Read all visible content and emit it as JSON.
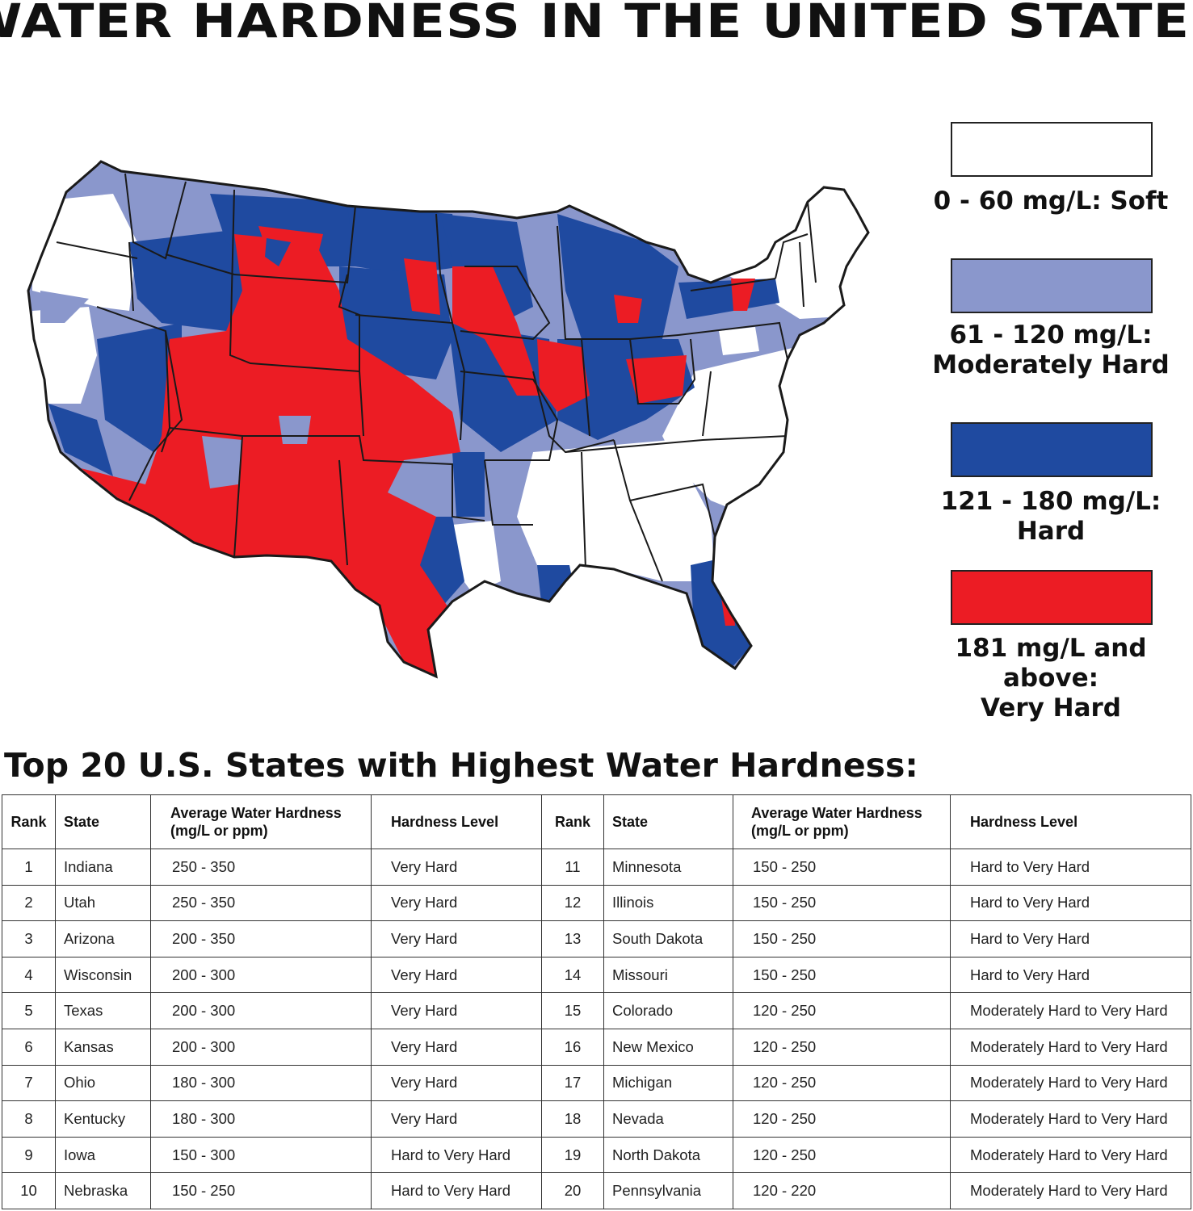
{
  "title": "WATER HARDNESS IN THE UNITED STATES",
  "legend": [
    {
      "label_lines": [
        "0 - 60 mg/L: Soft"
      ],
      "color": "#ffffff"
    },
    {
      "label_lines": [
        "61 - 120 mg/L:",
        "Moderately Hard"
      ],
      "color": "#8a97cc"
    },
    {
      "label_lines": [
        "121 - 180 mg/L: Hard"
      ],
      "color": "#1f4aa0"
    },
    {
      "label_lines": [
        "181 mg/L and above:",
        "Very Hard"
      ],
      "color": "#ec1c24"
    }
  ],
  "table": {
    "title": "Top 20 U.S. States with Highest Water Hardness:",
    "headers": {
      "rank": "Rank",
      "state": "State",
      "avg_line1": "Average Water Hardness",
      "avg_line2": "(mg/L or ppm)",
      "level": "Hardness Level"
    },
    "left_rows": [
      {
        "rank": "1",
        "state": "Indiana",
        "range": "250 - 350",
        "level": "Very Hard"
      },
      {
        "rank": "2",
        "state": "Utah",
        "range": "250 - 350",
        "level": "Very Hard"
      },
      {
        "rank": "3",
        "state": "Arizona",
        "range": "200 - 350",
        "level": "Very Hard"
      },
      {
        "rank": "4",
        "state": "Wisconsin",
        "range": "200 - 300",
        "level": "Very Hard"
      },
      {
        "rank": "5",
        "state": "Texas",
        "range": "200 - 300",
        "level": "Very Hard"
      },
      {
        "rank": "6",
        "state": "Kansas",
        "range": "200 - 300",
        "level": "Very Hard"
      },
      {
        "rank": "7",
        "state": "Ohio",
        "range": "180 - 300",
        "level": "Very Hard"
      },
      {
        "rank": "8",
        "state": "Kentucky",
        "range": "180 - 300",
        "level": "Very Hard"
      },
      {
        "rank": "9",
        "state": "Iowa",
        "range": "150 - 300",
        "level": "Hard to Very Hard"
      },
      {
        "rank": "10",
        "state": "Nebraska",
        "range": "150 - 250",
        "level": "Hard to Very Hard"
      }
    ],
    "right_rows": [
      {
        "rank": "11",
        "state": "Minnesota",
        "range": "150 - 250",
        "level": "Hard to Very Hard"
      },
      {
        "rank": "12",
        "state": "Illinois",
        "range": "150 - 250",
        "level": "Hard to Very Hard"
      },
      {
        "rank": "13",
        "state": "South Dakota",
        "range": "150 - 250",
        "level": "Hard to Very Hard"
      },
      {
        "rank": "14",
        "state": "Missouri",
        "range": "150 - 250",
        "level": "Hard to Very Hard"
      },
      {
        "rank": "15",
        "state": "Colorado",
        "range": "120 - 250",
        "level": "Moderately Hard to Very Hard"
      },
      {
        "rank": "16",
        "state": "New Mexico",
        "range": "120 - 250",
        "level": "Moderately Hard to Very Hard"
      },
      {
        "rank": "17",
        "state": "Michigan",
        "range": "120 - 250",
        "level": "Moderately Hard to Very Hard"
      },
      {
        "rank": "18",
        "state": "Nevada",
        "range": "120 - 250",
        "level": "Moderately Hard to Very Hard"
      },
      {
        "rank": "19",
        "state": "North Dakota",
        "range": "120 - 250",
        "level": "Moderately Hard to Very Hard"
      },
      {
        "rank": "20",
        "state": "Pennsylvania",
        "range": "120 - 220",
        "level": "Moderately Hard to Very Hard"
      }
    ]
  }
}
